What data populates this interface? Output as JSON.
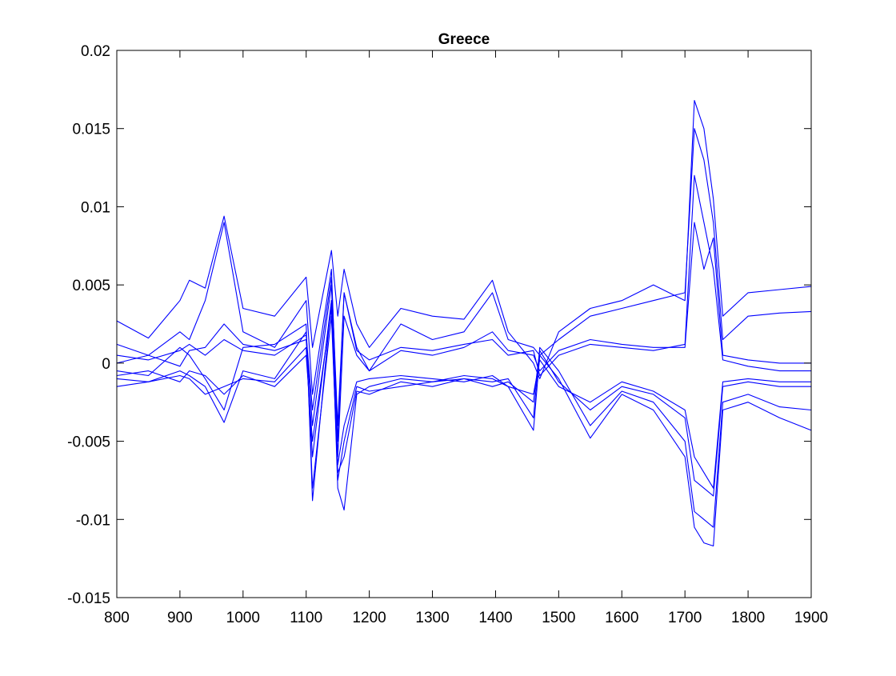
{
  "chart_data": {
    "type": "line",
    "title": "Greece",
    "xlabel": "",
    "ylabel": "",
    "xlim": [
      800,
      1900
    ],
    "ylim": [
      -0.015,
      0.02
    ],
    "xticks": [
      800,
      900,
      1000,
      1100,
      1200,
      1300,
      1400,
      1500,
      1600,
      1700,
      1800,
      1900
    ],
    "yticks": [
      -0.015,
      -0.01,
      -0.005,
      0,
      0.005,
      0.01,
      0.015,
      0.02
    ],
    "xtick_labels": [
      "800",
      "900",
      "1000",
      "1100",
      "1200",
      "1300",
      "1400",
      "1500",
      "1600",
      "1700",
      "1800",
      "1900"
    ],
    "ytick_labels": [
      "-0.015",
      "-0.01",
      "-0.005",
      "0",
      "0.005",
      "0.01",
      "0.015",
      "0.02"
    ],
    "grid": false,
    "line_color": "#0000ff",
    "x": [
      800,
      850,
      900,
      915,
      940,
      970,
      1000,
      1050,
      1100,
      1110,
      1140,
      1150,
      1160,
      1180,
      1200,
      1250,
      1300,
      1350,
      1395,
      1420,
      1460,
      1470,
      1500,
      1550,
      1600,
      1650,
      1700,
      1715,
      1730,
      1745,
      1760,
      1800,
      1850,
      1900
    ],
    "series": [
      {
        "values": [
          0.0027,
          0.0016,
          0.004,
          0.0053,
          0.0048,
          0.0094,
          0.0035,
          0.003,
          0.0055,
          0.001,
          0.0072,
          0.003,
          0.006,
          0.0025,
          0.001,
          0.0035,
          0.003,
          0.0028,
          0.0053,
          0.002,
          0.0,
          -0.001,
          0.002,
          0.0035,
          0.004,
          0.005,
          0.004,
          0.0168,
          0.015,
          0.0105,
          0.003,
          0.0045,
          0.0047,
          0.0049
        ]
      },
      {
        "values": [
          0.0012,
          0.0005,
          0.002,
          0.0015,
          0.004,
          0.009,
          0.002,
          0.001,
          0.004,
          -0.002,
          0.006,
          -0.005,
          0.0045,
          0.001,
          -0.0005,
          0.0025,
          0.0015,
          0.002,
          0.0045,
          0.0015,
          0.001,
          0.0005,
          0.0015,
          0.003,
          0.0035,
          0.004,
          0.0045,
          0.015,
          0.013,
          0.009,
          0.0015,
          0.003,
          0.0032,
          0.0033
        ]
      },
      {
        "values": [
          -0.0005,
          -0.0008,
          0.001,
          0.0005,
          -0.001,
          -0.003,
          0.001,
          0.0012,
          0.0025,
          -0.0088,
          0.004,
          -0.008,
          -0.0094,
          -0.002,
          -0.0015,
          -0.001,
          -0.0012,
          -0.0008,
          -0.001,
          -0.0015,
          -0.0043,
          0.0005,
          -0.001,
          -0.0048,
          -0.002,
          -0.003,
          -0.006,
          -0.0105,
          -0.0115,
          -0.0117,
          -0.003,
          -0.0025,
          -0.0035,
          -0.0043
        ]
      },
      {
        "values": [
          -0.001,
          -0.0012,
          -0.0005,
          -0.0008,
          -0.0015,
          -0.0038,
          -0.0005,
          -0.001,
          0.002,
          -0.008,
          0.003,
          -0.007,
          -0.006,
          -0.0018,
          -0.002,
          -0.0012,
          -0.0015,
          -0.001,
          -0.0012,
          -0.001,
          -0.0035,
          0.001,
          -0.0005,
          -0.004,
          -0.0018,
          -0.0025,
          -0.005,
          -0.0095,
          -0.01,
          -0.0105,
          -0.0025,
          -0.002,
          -0.0028,
          -0.003
        ]
      },
      {
        "values": [
          0.0,
          0.0005,
          -0.0002,
          0.0008,
          0.001,
          0.0025,
          0.0012,
          0.0008,
          0.0015,
          -0.004,
          0.005,
          -0.006,
          0.003,
          0.0005,
          -0.0005,
          0.0008,
          0.0005,
          0.001,
          0.002,
          0.0008,
          0.0005,
          -0.0005,
          0.0008,
          0.0015,
          0.0012,
          0.001,
          0.001,
          0.009,
          0.006,
          0.008,
          0.0005,
          0.0002,
          0.0,
          0.0
        ]
      },
      {
        "values": [
          -0.0015,
          -0.0012,
          -0.0008,
          -0.001,
          -0.002,
          -0.0015,
          -0.001,
          -0.0012,
          0.001,
          -0.006,
          0.004,
          -0.0075,
          -0.005,
          -0.0015,
          -0.0018,
          -0.0015,
          -0.0012,
          -0.001,
          -0.0015,
          -0.0012,
          -0.0025,
          0.0008,
          -0.0012,
          -0.003,
          -0.0015,
          -0.002,
          -0.0035,
          -0.0075,
          -0.008,
          -0.0085,
          -0.0015,
          -0.0012,
          -0.0015,
          -0.0015
        ]
      },
      {
        "values": [
          0.0005,
          0.0002,
          0.0008,
          0.0012,
          0.0005,
          0.0015,
          0.0008,
          0.0005,
          0.0018,
          -0.003,
          0.0055,
          -0.004,
          0.0045,
          0.0008,
          0.0002,
          0.001,
          0.0008,
          0.0012,
          0.0015,
          0.0005,
          0.0008,
          -0.0008,
          0.0005,
          0.0012,
          0.001,
          0.0008,
          0.0012,
          0.012,
          0.009,
          0.006,
          0.0002,
          -0.0002,
          -0.0005,
          -0.0005
        ]
      },
      {
        "values": [
          -0.0008,
          -0.0005,
          -0.0012,
          -0.0005,
          -0.0008,
          -0.002,
          -0.0008,
          -0.0015,
          0.0005,
          -0.005,
          0.0035,
          -0.0065,
          -0.004,
          -0.0012,
          -0.001,
          -0.0008,
          -0.001,
          -0.0012,
          -0.0008,
          -0.0015,
          -0.002,
          0.0002,
          -0.0015,
          -0.0025,
          -0.0012,
          -0.0018,
          -0.003,
          -0.006,
          -0.007,
          -0.008,
          -0.0012,
          -0.001,
          -0.0012,
          -0.0012
        ]
      }
    ]
  }
}
